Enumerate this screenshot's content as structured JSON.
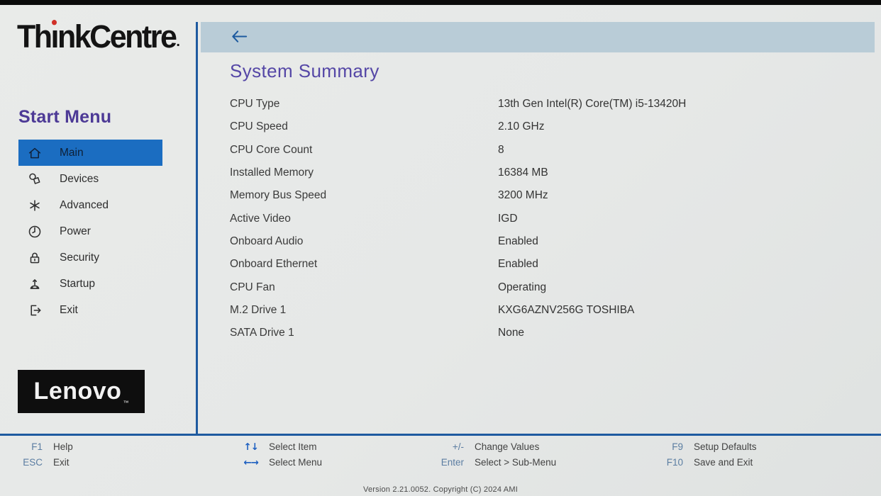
{
  "brand": {
    "logo_text": "ThinkCentre",
    "reg_mark": ".",
    "lenovo_logo": "Lenovo",
    "lenovo_tm": "TM"
  },
  "sidebar": {
    "title": "Start Menu",
    "items": [
      {
        "label": "Main",
        "icon": "home-icon",
        "selected": true
      },
      {
        "label": "Devices",
        "icon": "devices-icon",
        "selected": false
      },
      {
        "label": "Advanced",
        "icon": "advanced-asterisk-icon",
        "selected": false
      },
      {
        "label": "Power",
        "icon": "power-clock-icon",
        "selected": false
      },
      {
        "label": "Security",
        "icon": "lock-icon",
        "selected": false
      },
      {
        "label": "Startup",
        "icon": "startup-arrow-icon",
        "selected": false
      },
      {
        "label": "Exit",
        "icon": "exit-arrow-icon",
        "selected": false
      }
    ]
  },
  "main": {
    "title": "System Summary",
    "back_icon": "back-arrow-icon",
    "rows": [
      {
        "label": "CPU Type",
        "value": "13th Gen Intel(R) Core(TM) i5-13420H"
      },
      {
        "label": "CPU Speed",
        "value": "2.10 GHz"
      },
      {
        "label": "CPU Core Count",
        "value": "8"
      },
      {
        "label": "Installed Memory",
        "value": "16384 MB"
      },
      {
        "label": "Memory Bus Speed",
        "value": "3200 MHz"
      },
      {
        "label": "Active Video",
        "value": "IGD"
      },
      {
        "label": "Onboard Audio",
        "value": "Enabled"
      },
      {
        "label": "Onboard Ethernet",
        "value": "Enabled"
      },
      {
        "label": "CPU Fan",
        "value": "Operating"
      },
      {
        "label": "M.2 Drive 1",
        "value": "KXG6AZNV256G TOSHIBA"
      },
      {
        "label": "SATA Drive 1",
        "value": "None"
      }
    ]
  },
  "footer": {
    "groups": [
      [
        {
          "key": "F1",
          "label": "Help",
          "kind": "key"
        },
        {
          "key": "ESC",
          "label": "Exit",
          "kind": "key"
        }
      ],
      [
        {
          "key": "↑↓",
          "label": "Select Item",
          "kind": "arrows",
          "icon": "up-down-arrows-icon"
        },
        {
          "key": "←→",
          "label": "Select Menu",
          "kind": "arrows",
          "icon": "left-right-arrows-icon"
        }
      ],
      [
        {
          "key": "+/-",
          "label": "Change Values",
          "kind": "key"
        },
        {
          "key": "Enter",
          "label": "Select > Sub-Menu",
          "kind": "key"
        }
      ],
      [
        {
          "key": "F9",
          "label": "Setup Defaults",
          "kind": "key"
        },
        {
          "key": "F10",
          "label": "Save and Exit",
          "kind": "key"
        }
      ]
    ]
  },
  "version_line": "Version 2.21.0052. Copyright (C) 2024 AMI",
  "colors": {
    "accent_blue": "#1b6dc1",
    "divider_blue": "#1e5aa0",
    "header_band": "#b9ccd7",
    "title_purple": "#5547a6",
    "sidebar_title_purple": "#4d3a96",
    "key_slate": "#5b7da2",
    "arrow_blue": "#1d5fc0",
    "logo_red": "#d03028",
    "logo_black": "#141414"
  }
}
